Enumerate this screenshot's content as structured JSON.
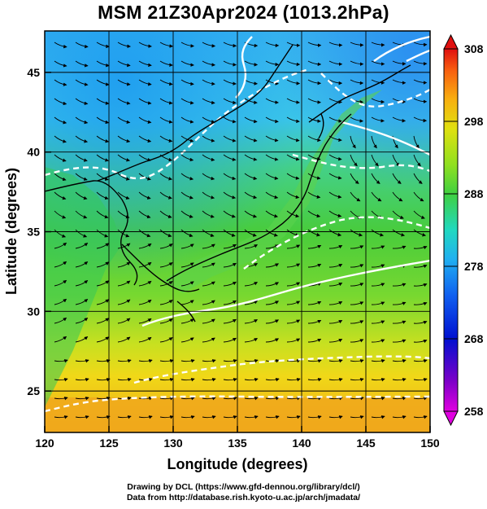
{
  "title": "MSM 21Z30Apr2024 (1013.2hPa)",
  "axes": {
    "xlabel": "Longitude (degrees)",
    "ylabel": "Latitude  (degrees)",
    "x_ticks": [
      "120",
      "125",
      "130",
      "135",
      "140",
      "145",
      "150"
    ],
    "y_ticks": [
      "25",
      "30",
      "35",
      "40",
      "45"
    ],
    "xlim": [
      120,
      150
    ],
    "ylim": [
      22.4,
      47.6
    ]
  },
  "colorbar": {
    "ticks": [
      "308",
      "298",
      "288",
      "278",
      "268",
      "258"
    ],
    "min": 258,
    "max": 308
  },
  "credits": {
    "line1": "Drawing by DCL (https://www.gfd-dennou.org/library/dcl/)",
    "line2": "Data from http://database.rish.kyoto-u.ac.jp/arch/jmadata/"
  }
}
